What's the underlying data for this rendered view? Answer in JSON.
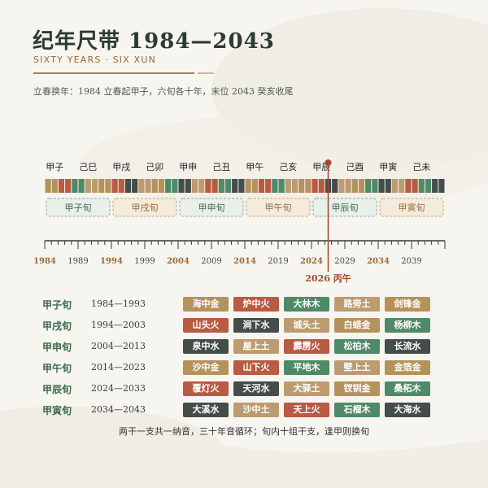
{
  "header": {
    "title": "纪年尺带 1984—2043",
    "subtitle": "SIXTY YEARS · SIX XUN",
    "description": "立春换年：1984 立春起甲子，六旬各十年，末位 2043 癸亥收尾"
  },
  "ruler": {
    "top_labels": [
      "甲子",
      "己巳",
      "甲戌",
      "己卯",
      "甲申",
      "己丑",
      "甲午",
      "己亥",
      "甲辰",
      "己酉",
      "甲寅",
      "己未"
    ],
    "xun_groups": [
      "甲子旬",
      "甲戌旬",
      "甲申旬",
      "甲午旬",
      "甲辰旬",
      "甲寅旬"
    ],
    "year_labels": [
      "1984",
      "1989",
      "1994",
      "1999",
      "2004",
      "2009",
      "2014",
      "2019",
      "2024",
      "2029",
      "2034",
      "2039"
    ],
    "highlighted_years": [
      "1984",
      "1994",
      "2004",
      "2014",
      "2024",
      "2034"
    ],
    "current_marker": "2026 丙午",
    "current_index": 42,
    "colors": {
      "wood": "#4f8a68",
      "fire": "#b95a43",
      "earth": "#bc9b70",
      "metal": "#b5925c",
      "water": "#454d4b",
      "accent": "#a4472b",
      "brown": "#9a6a3c"
    },
    "cell_elements": [
      "metal",
      "metal",
      "fire",
      "fire",
      "wood",
      "wood",
      "earth",
      "earth",
      "metal",
      "metal",
      "fire",
      "fire",
      "water",
      "water",
      "earth",
      "earth",
      "metal",
      "metal",
      "wood",
      "wood",
      "water",
      "water",
      "earth",
      "earth",
      "fire",
      "fire",
      "wood",
      "wood",
      "water",
      "water",
      "metal",
      "metal",
      "fire",
      "fire",
      "wood",
      "wood",
      "earth",
      "earth",
      "metal",
      "metal",
      "fire",
      "fire",
      "water",
      "water",
      "earth",
      "earth",
      "metal",
      "metal",
      "wood",
      "wood",
      "water",
      "water",
      "earth",
      "earth",
      "fire",
      "fire",
      "wood",
      "wood",
      "water",
      "water"
    ]
  },
  "table": {
    "rows": [
      {
        "xun": "甲子旬",
        "years": "1984—1993",
        "items": [
          {
            "label": "海中金",
            "element": "metal"
          },
          {
            "label": "炉中火",
            "element": "fire"
          },
          {
            "label": "大林木",
            "element": "wood"
          },
          {
            "label": "路旁土",
            "element": "earth"
          },
          {
            "label": "剑锋金",
            "element": "metal"
          }
        ]
      },
      {
        "xun": "甲戌旬",
        "years": "1994—2003",
        "items": [
          {
            "label": "山头火",
            "element": "fire"
          },
          {
            "label": "涧下水",
            "element": "water"
          },
          {
            "label": "城头土",
            "element": "earth"
          },
          {
            "label": "白蜡金",
            "element": "metal"
          },
          {
            "label": "杨柳木",
            "element": "wood"
          }
        ]
      },
      {
        "xun": "甲申旬",
        "years": "2004—2013",
        "items": [
          {
            "label": "泉中水",
            "element": "water"
          },
          {
            "label": "屋上土",
            "element": "earth"
          },
          {
            "label": "霹雳火",
            "element": "fire"
          },
          {
            "label": "松柏木",
            "element": "wood"
          },
          {
            "label": "长流水",
            "element": "water"
          }
        ]
      },
      {
        "xun": "甲午旬",
        "years": "2014—2023",
        "items": [
          {
            "label": "沙中金",
            "element": "metal"
          },
          {
            "label": "山下火",
            "element": "fire"
          },
          {
            "label": "平地木",
            "element": "wood"
          },
          {
            "label": "壁上土",
            "element": "earth"
          },
          {
            "label": "金箔金",
            "element": "metal"
          }
        ]
      },
      {
        "xun": "甲辰旬",
        "years": "2024—2033",
        "items": [
          {
            "label": "覆灯火",
            "element": "fire"
          },
          {
            "label": "天河水",
            "element": "water"
          },
          {
            "label": "大驿土",
            "element": "earth"
          },
          {
            "label": "钗钏金",
            "element": "metal"
          },
          {
            "label": "桑柘木",
            "element": "wood"
          }
        ]
      },
      {
        "xun": "甲寅旬",
        "years": "2034—2043",
        "items": [
          {
            "label": "大溪水",
            "element": "water"
          },
          {
            "label": "沙中土",
            "element": "earth"
          },
          {
            "label": "天上火",
            "element": "fire"
          },
          {
            "label": "石榴木",
            "element": "wood"
          },
          {
            "label": "大海水",
            "element": "water"
          }
        ]
      }
    ]
  },
  "footnote": "两干一支共一纳音，三十年音循环；旬内十组干支，逢甲则换旬"
}
